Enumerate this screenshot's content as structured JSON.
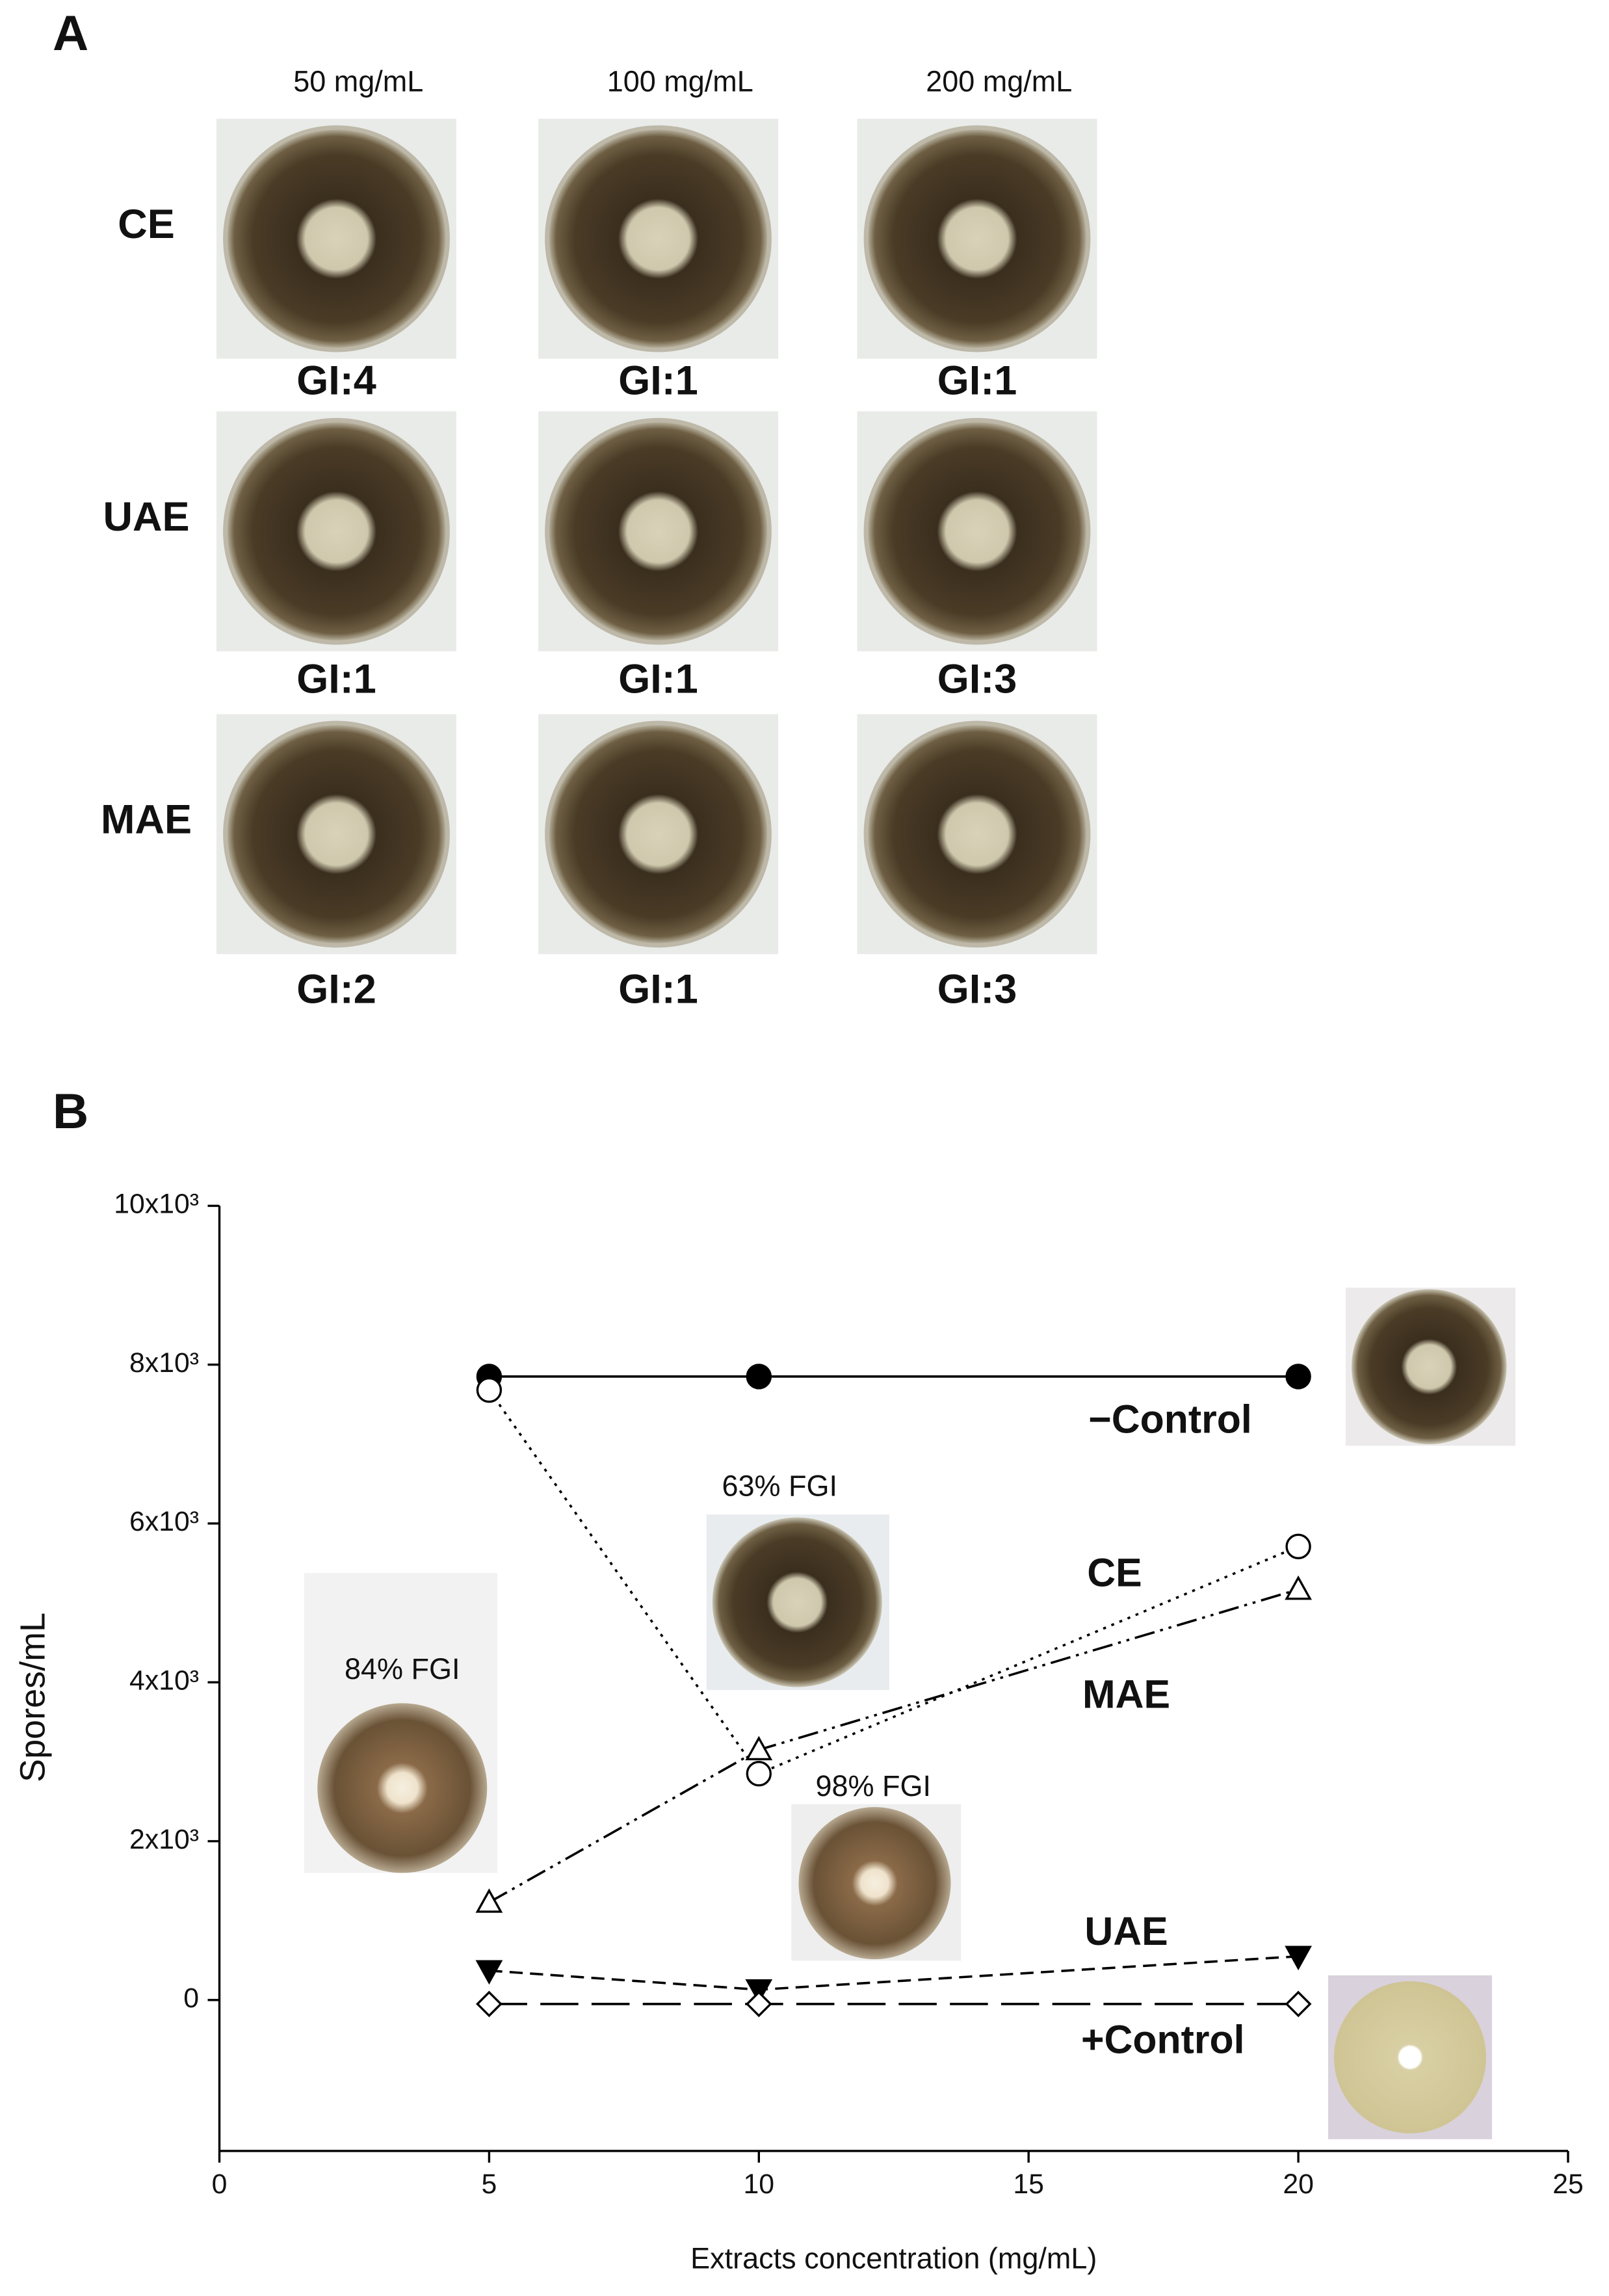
{
  "panel_a": {
    "label": "A",
    "columns": [
      "50 mg/mL",
      "100   mg/mL",
      "200 mg/mL"
    ],
    "rows": [
      {
        "label": "CE",
        "gi": [
          "GI:4",
          "GI:1",
          "GI:1"
        ]
      },
      {
        "label": "UAE",
        "gi": [
          "GI:1",
          "GI:1",
          "GI:3"
        ]
      },
      {
        "label": "MAE",
        "gi": [
          "GI:2",
          "GI:1",
          "GI:3"
        ]
      }
    ]
  },
  "panel_b_label": "B",
  "chart_data": {
    "type": "line",
    "x_label": "Extracts concentration (mg/mL)",
    "y_label": "Spores/mL",
    "x": [
      5,
      10,
      20
    ],
    "series": [
      {
        "name": "−Control",
        "color": "#000000",
        "marker": "filled-circle",
        "line_style": "solid",
        "values": [
          7850,
          7850,
          7850
        ]
      },
      {
        "name": "CE",
        "color": "#000000",
        "marker": "open-circle",
        "line_style": "dotted",
        "values": [
          7680,
          2850,
          5710
        ]
      },
      {
        "name": "MAE",
        "color": "#000000",
        "marker": "open-triangle",
        "line_style": "dash-dot-dot",
        "values": [
          1230,
          3150,
          5170
        ]
      },
      {
        "name": "UAE",
        "color": "#000000",
        "marker": "filled-inverted-triangle",
        "line_style": "dashed",
        "values": [
          370,
          130,
          550
        ]
      },
      {
        "name": "+Control",
        "color": "#000000",
        "marker": "open-diamond",
        "line_style": "long-dash",
        "values": [
          -50,
          -50,
          -50
        ]
      }
    ],
    "annotations": [
      "63% FGI",
      "84% FGI",
      "98% FGI"
    ],
    "xlim": [
      0,
      25
    ],
    "xticks": [
      0,
      5,
      10,
      15,
      20,
      25
    ],
    "ylim": [
      -1900,
      10000
    ],
    "yticks": [
      0,
      {
        "value": 2000,
        "label": "2x10³"
      },
      {
        "value": 4000,
        "label": "4x10³"
      },
      {
        "value": 6000,
        "label": "6x10³"
      },
      {
        "value": 8000,
        "label": "8x10³"
      },
      {
        "value": 10000,
        "label": "10x10³"
      }
    ],
    "grid": false
  }
}
